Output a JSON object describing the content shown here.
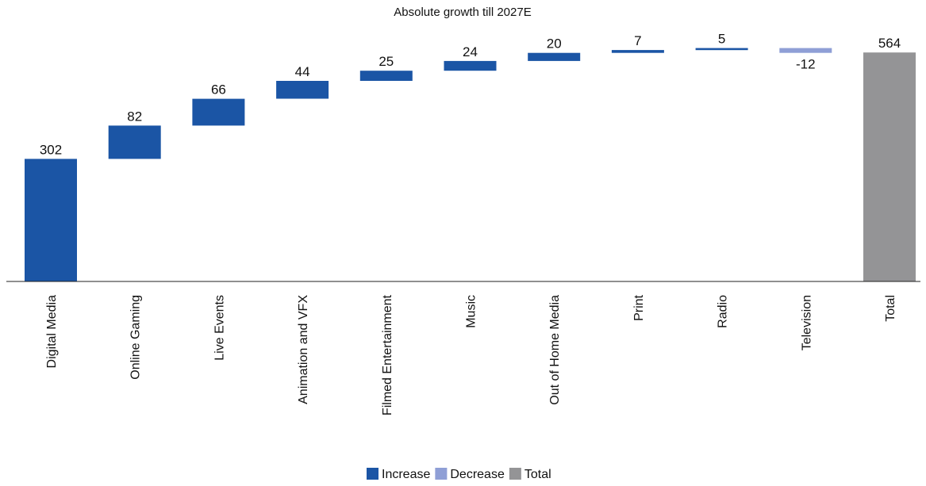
{
  "chart_data": {
    "type": "bar",
    "subtype": "waterfall",
    "title": "Absolute growth till 2027E",
    "xlabel": "",
    "ylabel": "",
    "categories": [
      "Digital Media",
      "Online Gaming",
      "Live Events",
      "Animation and VFX",
      "Filmed Entertainment",
      "Music",
      "Out of Home Media",
      "Print",
      "Radio",
      "Television",
      "Total"
    ],
    "values": [
      302,
      82,
      66,
      44,
      25,
      24,
      20,
      7,
      5,
      -12,
      564
    ],
    "value_labels": [
      "302",
      "82",
      "66",
      "44",
      "25",
      "24",
      "20",
      "7",
      "5",
      "-12",
      "564"
    ],
    "bar_kinds": [
      "increase",
      "increase",
      "increase",
      "increase",
      "increase",
      "increase",
      "increase",
      "increase",
      "increase",
      "decrease",
      "total"
    ],
    "ylim": [
      0,
      580
    ],
    "grid": false,
    "legend": {
      "placement": "bottom-center",
      "entries": [
        {
          "key": "increase",
          "label": "Increase"
        },
        {
          "key": "decrease",
          "label": "Decrease"
        },
        {
          "key": "total",
          "label": "Total"
        }
      ]
    },
    "colors": {
      "increase": "#1b55a5",
      "decrease": "#8f9fd6",
      "total": "#949496",
      "axis": "#222222"
    }
  }
}
